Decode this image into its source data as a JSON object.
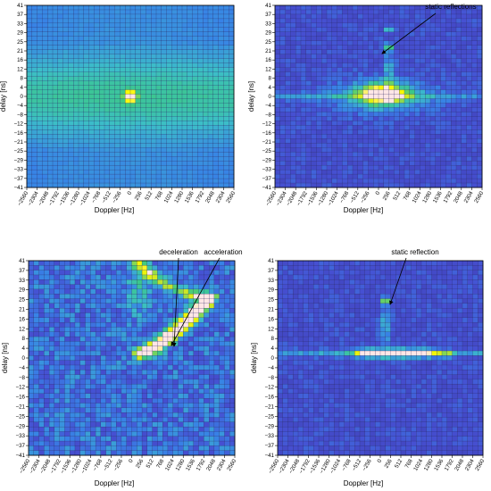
{
  "chart_data": [
    {
      "type": "heatmap",
      "xlabel": "Doppler [Hz]",
      "ylabel": "delay [ns]",
      "x_ticks": [
        "−2560",
        "−2304",
        "−2048",
        "−1792",
        "−1536",
        "−1280",
        "−1024",
        "−768",
        "−512",
        "−256",
        "0",
        "256",
        "512",
        "768",
        "1024",
        "1280",
        "1536",
        "1792",
        "2048",
        "2304",
        "2560"
      ],
      "y_ticks": [
        "41",
        "37",
        "33",
        "29",
        "25",
        "21",
        "16",
        "12",
        "8",
        "4",
        "0",
        "−4",
        "−8",
        "−12",
        "−16",
        "−21",
        "−25",
        "−29",
        "−33",
        "−37",
        "−41"
      ],
      "xlim": [
        -2560,
        2560
      ],
      "ylim": [
        -41,
        41
      ],
      "annotations": [],
      "hotspots": [
        {
          "doppler": 0,
          "delay": 0,
          "intensity": 1.0
        }
      ],
      "pattern": "single peak with faint delay ridge and Doppler ridge at zero"
    },
    {
      "type": "heatmap",
      "xlabel": "Doppler [Hz]",
      "ylabel": "delay [ns]",
      "x_ticks": [
        "−2560",
        "−2304",
        "−2048",
        "−1792",
        "−1536",
        "−1280",
        "−1024",
        "−768",
        "−512",
        "−256",
        "0",
        "256",
        "512",
        "768",
        "1024",
        "1280",
        "1536",
        "1792",
        "2048",
        "2304",
        "2560"
      ],
      "y_ticks": [
        "41",
        "37",
        "33",
        "29",
        "25",
        "21",
        "16",
        "12",
        "8",
        "4",
        "0",
        "−4",
        "−8",
        "−12",
        "−16",
        "−21",
        "−25",
        "−29",
        "−33",
        "−37",
        "−41"
      ],
      "xlim": [
        -2560,
        2560
      ],
      "ylim": [
        -41,
        41
      ],
      "annotations": [
        {
          "text": "static reflections",
          "doppler": 256,
          "delay": 22
        }
      ],
      "hotspots": [
        {
          "doppler": 128,
          "delay": 0,
          "intensity": 1.0
        },
        {
          "doppler": 256,
          "delay": 22,
          "intensity": 0.7
        },
        {
          "doppler": 256,
          "delay": 30,
          "intensity": 0.5
        }
      ],
      "pattern": "broad blob around zero delay spanning about -700 to 900 Hz"
    },
    {
      "type": "heatmap",
      "xlabel": "Doppler [Hz]",
      "ylabel": "delay [ns]",
      "x_ticks": [
        "−2560",
        "−2304",
        "−2048",
        "−1792",
        "−1536",
        "−1280",
        "−1024",
        "−768",
        "−512",
        "−256",
        "0",
        "256",
        "512",
        "768",
        "1024",
        "1280",
        "1536",
        "1792",
        "2048",
        "2304",
        "2560"
      ],
      "y_ticks": [
        "41",
        "37",
        "33",
        "29",
        "25",
        "21",
        "16",
        "12",
        "8",
        "4",
        "0",
        "−4",
        "−8",
        "−12",
        "−16",
        "−21",
        "−25",
        "−29",
        "−33",
        "−37",
        "−41"
      ],
      "xlim": [
        -2560,
        2560
      ],
      "ylim": [
        -41,
        41
      ],
      "annotations": [
        {
          "text": "deceleration",
          "doppler": 1000,
          "delay": 6
        },
        {
          "text": "acceleration",
          "doppler": 1024,
          "delay": 8
        }
      ],
      "hotspots": [
        {
          "doppler": 1024,
          "delay": 6,
          "intensity": 1.0
        },
        {
          "doppler": 1700,
          "delay": 20,
          "intensity": 1.0
        }
      ],
      "pattern": "curved bright trajectory from (256 Hz, 2 ns) to (1800 Hz, 24 ns) plus arc toward (128 Hz, 40 ns)"
    },
    {
      "type": "heatmap",
      "xlabel": "Doppler [Hz]",
      "ylabel": "delay [ns]",
      "x_ticks": [
        "−2560",
        "−2304",
        "−2048",
        "−1792",
        "−1536",
        "−1280",
        "−1024",
        "−768",
        "−512",
        "−256",
        "0",
        "256",
        "512",
        "768",
        "1024",
        "1280",
        "1536",
        "1792",
        "2048",
        "2304",
        "2560"
      ],
      "y_ticks": [
        "41",
        "37",
        "33",
        "29",
        "25",
        "21",
        "16",
        "12",
        "8",
        "4",
        "0",
        "−4",
        "−8",
        "−12",
        "−16",
        "−21",
        "−25",
        "−29",
        "−33",
        "−37",
        "−41"
      ],
      "xlim": [
        -2560,
        2560
      ],
      "ylim": [
        -41,
        41
      ],
      "annotations": [
        {
          "text": "static reflection",
          "doppler": 128,
          "delay": 24
        }
      ],
      "hotspots": [
        {
          "doppler": 400,
          "delay": 2,
          "intensity": 1.0
        },
        {
          "doppler": 128,
          "delay": 24,
          "intensity": 0.9
        }
      ],
      "pattern": "horizontal band at delay 0-4 from about -700 to 1700 Hz"
    }
  ]
}
